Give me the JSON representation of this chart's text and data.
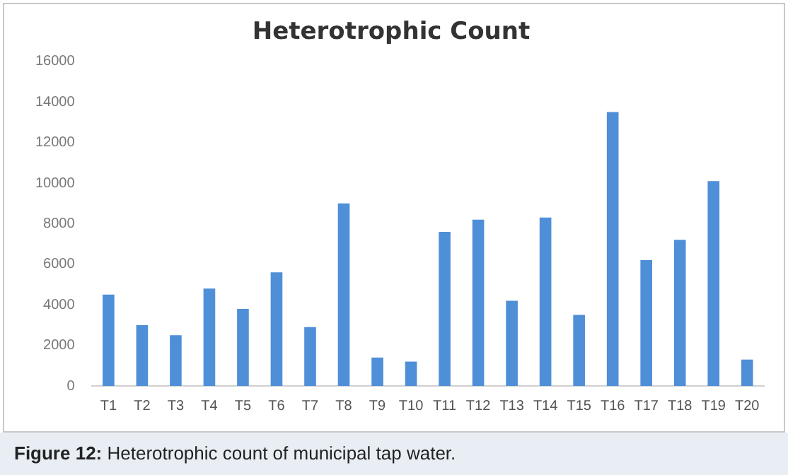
{
  "chart_data": {
    "type": "bar",
    "title": "Heterotrophic Count",
    "categories": [
      "T1",
      "T2",
      "T3",
      "T4",
      "T5",
      "T6",
      "T7",
      "T8",
      "T9",
      "T10",
      "T11",
      "T12",
      "T13",
      "T14",
      "T15",
      "T16",
      "T17",
      "T18",
      "T19",
      "T20"
    ],
    "values": [
      4500,
      3000,
      2500,
      4800,
      3800,
      5600,
      2900,
      9000,
      1400,
      1200,
      7600,
      8200,
      4200,
      8300,
      3500,
      13500,
      6200,
      7200,
      10100,
      1300
    ],
    "color": "#4f8fd8",
    "ylim": [
      0,
      16000
    ],
    "yticks": [
      0,
      2000,
      4000,
      6000,
      8000,
      10000,
      12000,
      14000,
      16000
    ],
    "grid": false,
    "annotations": [
      "Figure 12: Heterotrophic count of municipal tap water."
    ]
  }
}
